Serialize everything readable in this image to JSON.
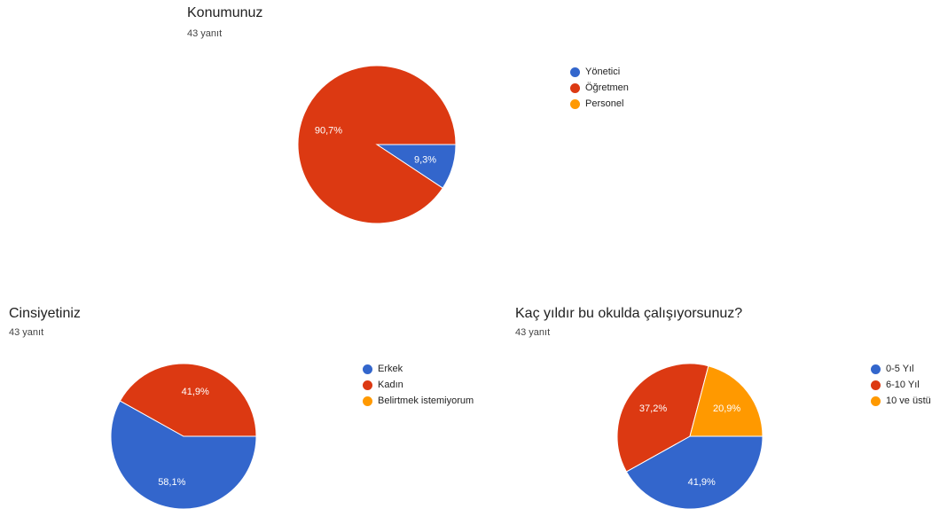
{
  "colors": {
    "blue": "#3366cc",
    "red": "#dc3912",
    "orange": "#ff9900"
  },
  "chart_data": [
    {
      "type": "pie",
      "title": "Konumunuz",
      "subtitle": "43 yanıt",
      "labels": [
        "Yönetici",
        "Öğretmen",
        "Personel"
      ],
      "values": [
        9.3,
        90.7,
        0
      ],
      "value_labels": [
        "9,3%",
        "90,7%",
        ""
      ],
      "colors": [
        "#3366cc",
        "#dc3912",
        "#ff9900"
      ],
      "legend": "right"
    },
    {
      "type": "pie",
      "title": "Cinsiyetiniz",
      "subtitle": "43 yanıt",
      "labels": [
        "Erkek",
        "Kadın",
        "Belirtmek istemiyorum"
      ],
      "values": [
        58.1,
        41.9,
        0
      ],
      "value_labels": [
        "58,1%",
        "41,9%",
        ""
      ],
      "colors": [
        "#3366cc",
        "#dc3912",
        "#ff9900"
      ],
      "legend": "right"
    },
    {
      "type": "pie",
      "title": "Kaç yıldır bu okulda çalışıyorsunuz?",
      "subtitle": "43 yanıt",
      "labels": [
        "0-5 Yıl",
        "6-10 Yıl",
        "10 ve üstü"
      ],
      "values": [
        41.9,
        37.2,
        20.9
      ],
      "value_labels": [
        "41,9%",
        "37,2%",
        "20,9%"
      ],
      "colors": [
        "#3366cc",
        "#dc3912",
        "#ff9900"
      ],
      "legend": "right"
    }
  ]
}
